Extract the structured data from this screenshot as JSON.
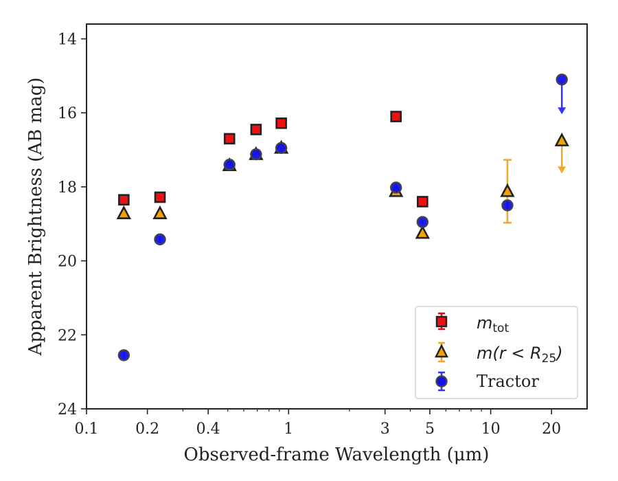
{
  "chart_data": {
    "type": "scatter",
    "title": "",
    "xlabel": "Observed-frame Wavelength (μm)",
    "ylabel": "Apparent Brightness (AB mag)",
    "xscale": "log",
    "xlim": [
      0.1,
      30
    ],
    "ylim": [
      24,
      13.6
    ],
    "y_inverted": true,
    "xticks": [
      0.1,
      0.2,
      0.4,
      1,
      3,
      5,
      10,
      20
    ],
    "xtick_labels": [
      "0.1",
      "0.2",
      "0.4",
      "1",
      "3",
      "5",
      "10",
      "20"
    ],
    "yticks": [
      14,
      16,
      18,
      20,
      22,
      24
    ],
    "ytick_labels": [
      "14",
      "16",
      "18",
      "20",
      "22",
      "24"
    ],
    "grid": false,
    "legend_position": "bottom-right",
    "legend_labels": {
      "mtot_base": "m",
      "mtot_sub": "tot",
      "mr_text": "m(r < R",
      "mr_sub": "25",
      "mr_close": ")",
      "tractor": "Tractor"
    },
    "series": [
      {
        "key": "mtot",
        "marker": "square",
        "color": "#ee1111",
        "edge": "#222222",
        "errcolor": "#dd1111",
        "points": [
          {
            "x": 0.153,
            "y": 18.35,
            "err": 0.06
          },
          {
            "x": 0.231,
            "y": 18.28,
            "err": 0.06
          },
          {
            "x": 0.51,
            "y": 16.7,
            "err": 0.05
          },
          {
            "x": 0.69,
            "y": 16.45,
            "err": 0.05
          },
          {
            "x": 0.92,
            "y": 16.28,
            "err": 0.05
          },
          {
            "x": 3.4,
            "y": 16.1,
            "err": 0.05
          },
          {
            "x": 4.6,
            "y": 18.4,
            "err": 0.06
          }
        ]
      },
      {
        "key": "mr25",
        "marker": "triangle",
        "color": "#f5a100",
        "edge": "#222222",
        "errcolor": "#f5a623",
        "points": [
          {
            "x": 0.153,
            "y": 18.72,
            "err": 0.06
          },
          {
            "x": 0.231,
            "y": 18.72,
            "err": 0.06
          },
          {
            "x": 0.51,
            "y": 17.42,
            "err": 0.05
          },
          {
            "x": 0.69,
            "y": 17.12,
            "err": 0.05
          },
          {
            "x": 0.92,
            "y": 16.95,
            "err": 0.05
          },
          {
            "x": 3.4,
            "y": 18.12,
            "err": 0.05
          },
          {
            "x": 4.6,
            "y": 19.25,
            "err": 0.06
          },
          {
            "x": 12.1,
            "y": 18.12,
            "err": 0.85
          },
          {
            "x": 22.5,
            "y": 16.75,
            "upper_limit": true,
            "arrow_to": 17.6
          }
        ]
      },
      {
        "key": "tractor",
        "marker": "circle",
        "color": "#1111ee",
        "edge": "#444444",
        "errcolor": "#3333ff",
        "points": [
          {
            "x": 0.153,
            "y": 22.55,
            "err": 0.1
          },
          {
            "x": 0.231,
            "y": 19.42,
            "err": 0.08
          },
          {
            "x": 0.51,
            "y": 17.4,
            "err": 0.05
          },
          {
            "x": 0.69,
            "y": 17.12,
            "err": 0.05
          },
          {
            "x": 0.92,
            "y": 16.95,
            "err": 0.05
          },
          {
            "x": 3.4,
            "y": 18.02,
            "err": 0.05
          },
          {
            "x": 4.6,
            "y": 18.95,
            "err": 0.06
          },
          {
            "x": 12.1,
            "y": 18.5,
            "err": 0.1
          },
          {
            "x": 22.5,
            "y": 15.1,
            "upper_limit": true,
            "arrow_to": 16.0
          }
        ]
      }
    ]
  }
}
